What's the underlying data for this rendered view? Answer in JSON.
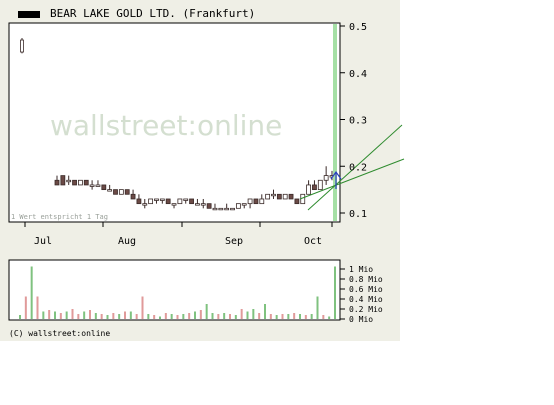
{
  "title": "BEAR LAKE GOLD LTD. (Frankfurt)",
  "watermark": "wallstreet:online",
  "note": "1 Wert entspricht 1 Tag",
  "copyright": "(C) wallstreet:online",
  "colors": {
    "panel": "#efefe6",
    "up": "#ffffff",
    "down": "#6b4a46",
    "trend": "#2e8b2e",
    "vol_up": "#7fc27f",
    "vol_down": "#e09a9a"
  },
  "chart_data": [
    {
      "type": "candlestick",
      "title": "BEAR LAKE GOLD LTD. (Frankfurt)",
      "x_tick_labels": [
        "Jul",
        "Aug",
        "Sep",
        "Oct"
      ],
      "y_tick_labels": [
        "0.5",
        "0.4",
        "0.3",
        "0.2",
        "0.1"
      ],
      "ylim": [
        0.1,
        0.5
      ],
      "candles": [
        [
          0.17,
          0.18,
          0.16,
          0.16
        ],
        [
          0.18,
          0.18,
          0.16,
          0.16
        ],
        [
          0.17,
          0.18,
          0.16,
          0.17
        ],
        [
          0.17,
          0.17,
          0.16,
          0.16
        ],
        [
          0.16,
          0.17,
          0.16,
          0.17
        ],
        [
          0.17,
          0.17,
          0.16,
          0.16
        ],
        [
          0.16,
          0.17,
          0.15,
          0.16
        ],
        [
          0.16,
          0.17,
          0.16,
          0.16
        ],
        [
          0.16,
          0.16,
          0.15,
          0.15
        ],
        [
          0.15,
          0.16,
          0.15,
          0.15
        ],
        [
          0.15,
          0.15,
          0.14,
          0.14
        ],
        [
          0.14,
          0.15,
          0.14,
          0.15
        ],
        [
          0.15,
          0.15,
          0.14,
          0.14
        ],
        [
          0.14,
          0.15,
          0.13,
          0.13
        ],
        [
          0.13,
          0.14,
          0.12,
          0.12
        ],
        [
          0.12,
          0.13,
          0.11,
          0.12
        ],
        [
          0.12,
          0.13,
          0.12,
          0.13
        ],
        [
          0.13,
          0.13,
          0.12,
          0.13
        ],
        [
          0.13,
          0.13,
          0.12,
          0.13
        ],
        [
          0.13,
          0.13,
          0.12,
          0.12
        ],
        [
          0.12,
          0.12,
          0.11,
          0.12
        ],
        [
          0.12,
          0.13,
          0.12,
          0.13
        ],
        [
          0.13,
          0.13,
          0.12,
          0.13
        ],
        [
          0.13,
          0.13,
          0.12,
          0.12
        ],
        [
          0.12,
          0.13,
          0.12,
          0.12
        ],
        [
          0.12,
          0.13,
          0.11,
          0.12
        ],
        [
          0.12,
          0.12,
          0.11,
          0.11
        ],
        [
          0.11,
          0.12,
          0.11,
          0.11
        ],
        [
          0.11,
          0.11,
          0.11,
          0.11
        ],
        [
          0.11,
          0.12,
          0.11,
          0.11
        ],
        [
          0.11,
          0.11,
          0.11,
          0.11
        ],
        [
          0.11,
          0.12,
          0.11,
          0.12
        ],
        [
          0.12,
          0.12,
          0.11,
          0.12
        ],
        [
          0.12,
          0.13,
          0.11,
          0.13
        ],
        [
          0.13,
          0.13,
          0.12,
          0.12
        ],
        [
          0.12,
          0.14,
          0.12,
          0.13
        ],
        [
          0.13,
          0.14,
          0.13,
          0.14
        ],
        [
          0.14,
          0.15,
          0.13,
          0.14
        ],
        [
          0.14,
          0.14,
          0.13,
          0.13
        ],
        [
          0.13,
          0.14,
          0.13,
          0.14
        ],
        [
          0.14,
          0.14,
          0.13,
          0.13
        ],
        [
          0.13,
          0.13,
          0.12,
          0.12
        ],
        [
          0.12,
          0.14,
          0.12,
          0.14
        ],
        [
          0.14,
          0.17,
          0.14,
          0.16
        ],
        [
          0.16,
          0.17,
          0.15,
          0.15
        ],
        [
          0.15,
          0.17,
          0.15,
          0.17
        ],
        [
          0.17,
          0.2,
          0.16,
          0.18
        ],
        [
          0.18,
          0.19,
          0.17,
          0.18
        ]
      ],
      "outlier_candle": [
        0.45,
        0.47,
        0.45,
        0.45
      ],
      "trend_lines": [
        [
          [
            0.13,
            0.23
          ],
          [
            0.2,
            0.29
          ]
        ],
        [
          [
            0.15,
            0.22
          ],
          [
            0.21,
            0.26
          ]
        ]
      ]
    },
    {
      "type": "bar",
      "title": "",
      "y_tick_labels": [
        "1 Mio",
        "0.8 Mio",
        "0.6 Mio",
        "0.4 Mio",
        "0.2 Mio",
        "0 Mio"
      ],
      "ylim": [
        0,
        1.1
      ],
      "values": [
        0.08,
        0.45,
        1.05,
        0.45,
        0.15,
        0.18,
        0.15,
        0.12,
        0.15,
        0.2,
        0.1,
        0.15,
        0.18,
        0.12,
        0.1,
        0.08,
        0.12,
        0.1,
        0.15,
        0.15,
        0.1,
        0.45,
        0.1,
        0.08,
        0.05,
        0.12,
        0.1,
        0.08,
        0.1,
        0.12,
        0.15,
        0.18,
        0.3,
        0.12,
        0.1,
        0.12,
        0.1,
        0.08,
        0.2,
        0.15,
        0.2,
        0.12,
        0.3,
        0.1,
        0.08,
        0.1,
        0.1,
        0.12,
        0.1,
        0.08,
        0.1,
        0.45,
        0.08,
        0.05,
        1.05
      ],
      "up": [
        true,
        false,
        true,
        false,
        true,
        false,
        true,
        false,
        true,
        false,
        false,
        true,
        false,
        true,
        false,
        true,
        false,
        true,
        false,
        true,
        false,
        false,
        true,
        false,
        true,
        false,
        true,
        false,
        true,
        false,
        true,
        false,
        true,
        true,
        false,
        true,
        false,
        true,
        false,
        true,
        true,
        false,
        true,
        false,
        true,
        false,
        true,
        false,
        true,
        false,
        true,
        true,
        false,
        true,
        true
      ]
    }
  ]
}
